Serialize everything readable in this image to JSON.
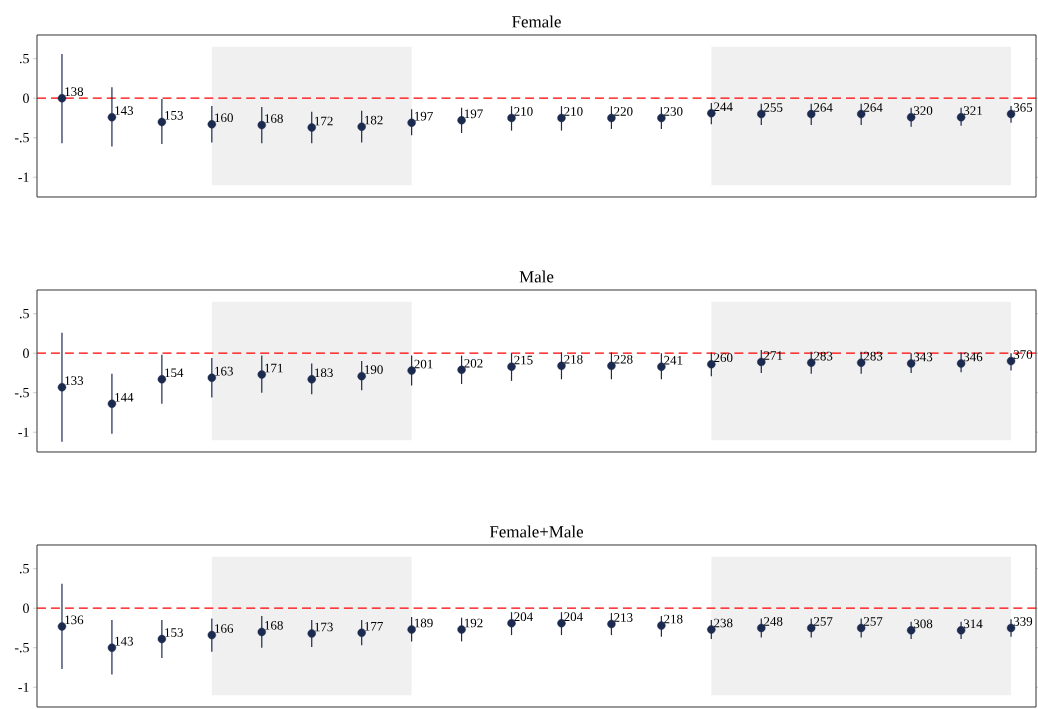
{
  "chart_data": [
    {
      "type": "scatter",
      "title": "Female",
      "categories": [
        null,
        null,
        null,
        null,
        null,
        null,
        null,
        null,
        null,
        null,
        null,
        null,
        null,
        null,
        null,
        null,
        null,
        null,
        null,
        null
      ],
      "values": [
        0.0,
        -0.24,
        -0.3,
        -0.33,
        -0.34,
        -0.37,
        -0.36,
        -0.31,
        -0.28,
        -0.25,
        -0.25,
        -0.25,
        -0.25,
        -0.19,
        -0.2,
        -0.2,
        -0.2,
        -0.24,
        -0.24,
        -0.2
      ],
      "errors": [
        [
          -0.57,
          0.56
        ],
        [
          -0.61,
          0.14
        ],
        [
          -0.58,
          -0.01
        ],
        [
          -0.56,
          -0.1
        ],
        [
          -0.57,
          -0.11
        ],
        [
          -0.57,
          -0.17
        ],
        [
          -0.56,
          -0.16
        ],
        [
          -0.47,
          -0.14
        ],
        [
          -0.44,
          -0.12
        ],
        [
          -0.41,
          -0.1
        ],
        [
          -0.41,
          -0.1
        ],
        [
          -0.39,
          -0.1
        ],
        [
          -0.39,
          -0.11
        ],
        [
          -0.33,
          -0.06
        ],
        [
          -0.34,
          -0.07
        ],
        [
          -0.34,
          -0.07
        ],
        [
          -0.34,
          -0.07
        ],
        [
          -0.36,
          -0.12
        ],
        [
          -0.35,
          -0.12
        ],
        [
          -0.31,
          -0.1
        ]
      ],
      "annotations": [
        "138",
        "143",
        "153",
        "160",
        "168",
        "172",
        "182",
        "197",
        "197",
        "210",
        "210",
        "220",
        "230",
        "244",
        "255",
        "264",
        "264",
        "320",
        "321",
        "365"
      ],
      "color": "#1b2a4e",
      "marker": "circle",
      "ylim": [
        -1.25,
        0.8
      ],
      "yticks": [
        {
          "value": -1,
          "label": "-1"
        },
        {
          "value": -0.5,
          "label": "-.5"
        },
        {
          "value": 0,
          "label": "0"
        },
        {
          "value": 0.5,
          "label": ".5"
        }
      ],
      "ref_lines": [
        {
          "axis": "y",
          "value": 0,
          "color": "#ff0000",
          "line_style": "dashed"
        }
      ],
      "tick_labels": "y"
    },
    {
      "type": "scatter",
      "title": "Male",
      "categories": [
        null,
        null,
        null,
        null,
        null,
        null,
        null,
        null,
        null,
        null,
        null,
        null,
        null,
        null,
        null,
        null,
        null,
        null,
        null,
        null
      ],
      "values": [
        -0.43,
        -0.64,
        -0.33,
        -0.31,
        -0.27,
        -0.33,
        -0.29,
        -0.22,
        -0.21,
        -0.17,
        -0.16,
        -0.16,
        -0.17,
        -0.14,
        -0.11,
        -0.12,
        -0.12,
        -0.13,
        -0.13,
        -0.1
      ],
      "errors": [
        [
          -1.12,
          0.26
        ],
        [
          -1.02,
          -0.26
        ],
        [
          -0.64,
          -0.02
        ],
        [
          -0.56,
          -0.06
        ],
        [
          -0.5,
          -0.03
        ],
        [
          -0.52,
          -0.13
        ],
        [
          -0.47,
          -0.1
        ],
        [
          -0.41,
          -0.03
        ],
        [
          -0.39,
          -0.03
        ],
        [
          -0.35,
          0.0
        ],
        [
          -0.33,
          0.01
        ],
        [
          -0.33,
          0.01
        ],
        [
          -0.33,
          0.0
        ],
        [
          -0.29,
          0.01
        ],
        [
          -0.25,
          0.04
        ],
        [
          -0.26,
          0.02
        ],
        [
          -0.26,
          0.02
        ],
        [
          -0.25,
          0.0
        ],
        [
          -0.24,
          0.01
        ],
        [
          -0.22,
          0.0
        ]
      ],
      "annotations": [
        "133",
        "144",
        "154",
        "163",
        "171",
        "183",
        "190",
        "201",
        "202",
        "215",
        "218",
        "228",
        "241",
        "260",
        "271",
        "283",
        "283",
        "343",
        "346",
        "370"
      ],
      "color": "#1b2a4e",
      "marker": "circle",
      "ylim": [
        -1.25,
        0.8
      ],
      "yticks": [
        {
          "value": -1,
          "label": "-1"
        },
        {
          "value": -0.5,
          "label": "-.5"
        },
        {
          "value": 0,
          "label": "0"
        },
        {
          "value": 0.5,
          "label": ".5"
        }
      ],
      "ref_lines": [
        {
          "axis": "y",
          "value": 0,
          "color": "#ff0000",
          "line_style": "dashed"
        }
      ],
      "tick_labels": "y"
    },
    {
      "type": "scatter",
      "title": "Female+Male",
      "categories": [
        null,
        null,
        null,
        null,
        null,
        null,
        null,
        null,
        null,
        null,
        null,
        null,
        null,
        null,
        null,
        null,
        null,
        null,
        null,
        null
      ],
      "values": [
        -0.23,
        -0.5,
        -0.39,
        -0.34,
        -0.3,
        -0.32,
        -0.31,
        -0.27,
        -0.27,
        -0.19,
        -0.19,
        -0.2,
        -0.22,
        -0.27,
        -0.25,
        -0.25,
        -0.25,
        -0.28,
        -0.28,
        -0.25
      ],
      "errors": [
        [
          -0.77,
          0.31
        ],
        [
          -0.84,
          -0.15
        ],
        [
          -0.63,
          -0.15
        ],
        [
          -0.55,
          -0.13
        ],
        [
          -0.5,
          -0.1
        ],
        [
          -0.49,
          -0.15
        ],
        [
          -0.47,
          -0.15
        ],
        [
          -0.42,
          -0.11
        ],
        [
          -0.42,
          -0.12
        ],
        [
          -0.34,
          -0.05
        ],
        [
          -0.34,
          -0.05
        ],
        [
          -0.34,
          -0.06
        ],
        [
          -0.36,
          -0.1
        ],
        [
          -0.39,
          -0.15
        ],
        [
          -0.37,
          -0.13
        ],
        [
          -0.37,
          -0.13
        ],
        [
          -0.37,
          -0.13
        ],
        [
          -0.39,
          -0.17
        ],
        [
          -0.39,
          -0.17
        ],
        [
          -0.36,
          -0.14
        ]
      ],
      "annotations": [
        "136",
        "143",
        "153",
        "166",
        "168",
        "173",
        "177",
        "189",
        "192",
        "204",
        "204",
        "213",
        "218",
        "238",
        "248",
        "257",
        "257",
        "308",
        "314",
        "339"
      ],
      "color": "#1b2a4e",
      "marker": "circle",
      "ylim": [
        -1.25,
        0.8
      ],
      "yticks": [
        {
          "value": -1,
          "label": "-1"
        },
        {
          "value": -0.5,
          "label": "-.5"
        },
        {
          "value": 0,
          "label": "0"
        },
        {
          "value": 0.5,
          "label": ".5"
        }
      ],
      "ref_lines": [
        {
          "axis": "y",
          "value": 0,
          "color": "#ff0000",
          "line_style": "dashed"
        }
      ],
      "tick_labels": "y"
    }
  ]
}
